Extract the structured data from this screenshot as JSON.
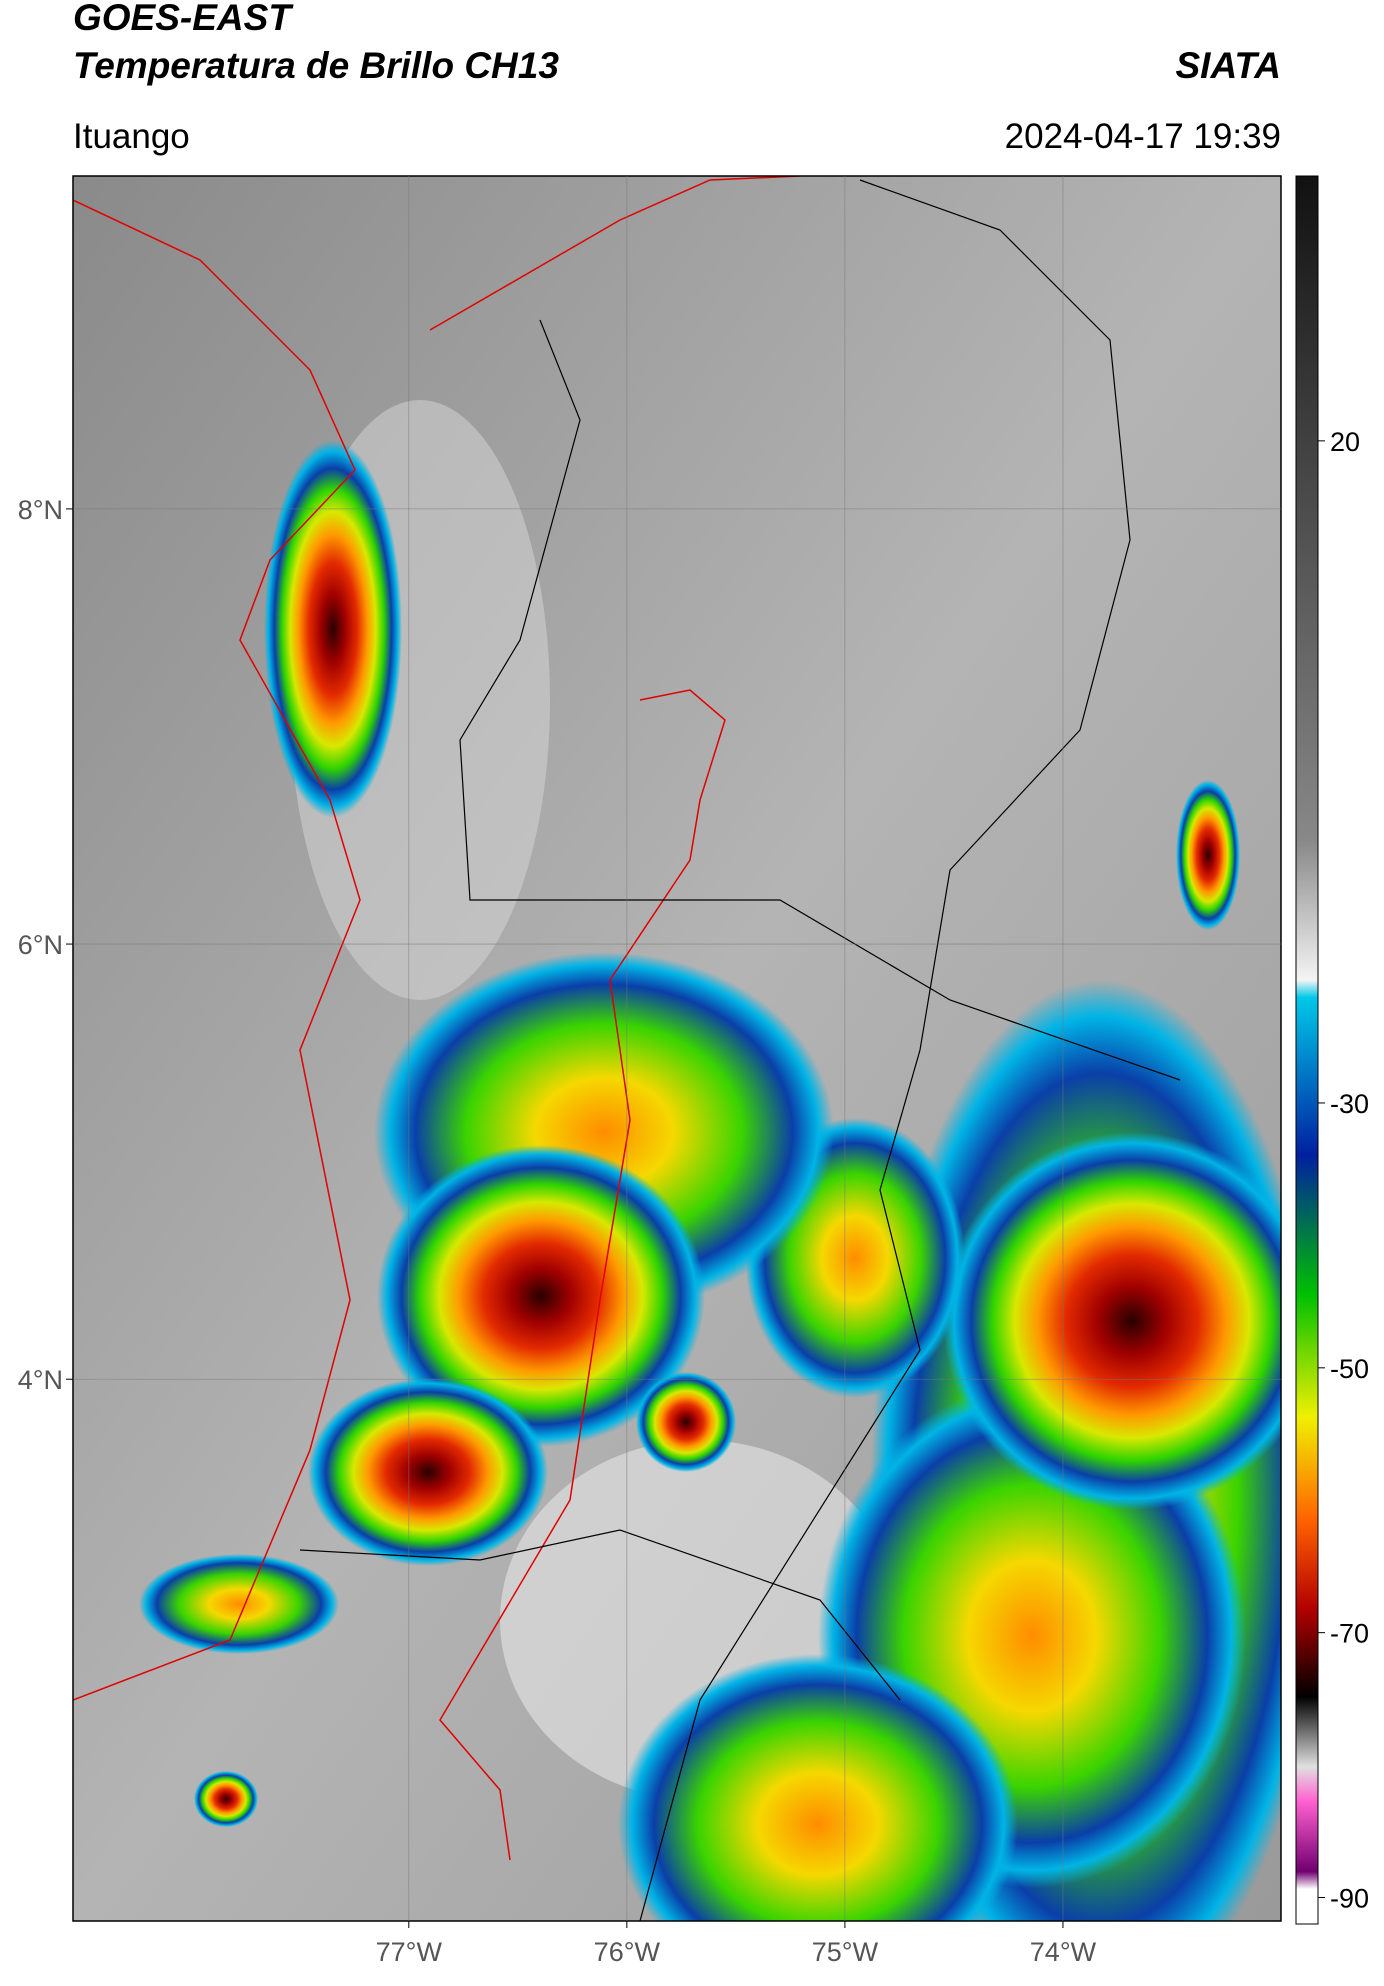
{
  "header": {
    "title": "GOES-EAST",
    "subtitle": "Temperatura de Brillo CH13",
    "source": "SIATA",
    "location": "Ituango",
    "datetime": "2024-04-17 19:39"
  },
  "map": {
    "xlim": [
      -78.54,
      -73.0
    ],
    "ylim": [
      1.51,
      9.53
    ],
    "xticks": [
      {
        "value": -77,
        "label": "77°W"
      },
      {
        "value": -76,
        "label": "76°W"
      },
      {
        "value": -75,
        "label": "75°W"
      },
      {
        "value": -74,
        "label": "74°W"
      }
    ],
    "yticks": [
      {
        "value": 8,
        "label": "8°N"
      },
      {
        "value": 6,
        "label": "6°N"
      },
      {
        "value": 4,
        "label": "4°N"
      }
    ],
    "grid": true
  },
  "colorbar": {
    "lim": [
      -92,
      40
    ],
    "ticks": [
      20,
      -30,
      -50,
      -70,
      -90
    ]
  }
}
